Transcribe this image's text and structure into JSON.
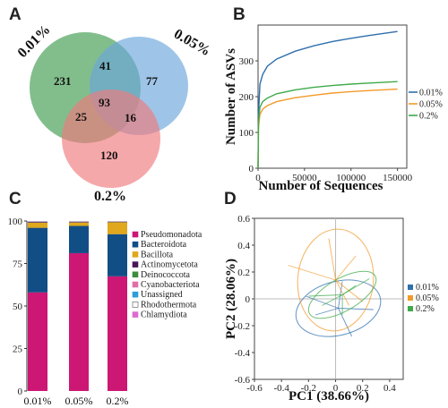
{
  "panels": {
    "A": "A",
    "B": "B",
    "C": "C",
    "D": "D"
  },
  "chart_data": [
    {
      "type": "venn",
      "panel": "A",
      "sets": [
        "0.01%",
        "0.05%",
        "0.2%"
      ],
      "colors": [
        "#3f9b4f",
        "#6aa6db",
        "#ef7a7c"
      ],
      "regions": {
        "only_0.01": 231,
        "only_0.05": 77,
        "only_0.2": 120,
        "0.01_0.05": 41,
        "0.01_0.2": 25,
        "0.05_0.2": 16,
        "all": 93
      }
    },
    {
      "type": "line",
      "panel": "B",
      "xlabel": "Number of Sequences",
      "ylabel": "Number of ASVs",
      "xlim": [
        0,
        160000
      ],
      "ylim": [
        0,
        400
      ],
      "xticks": [
        0,
        50000,
        100000,
        150000
      ],
      "yticks": [
        0,
        100,
        200,
        300
      ],
      "legend_position": "right",
      "series": [
        {
          "name": "0.01%",
          "color": "#2f6fad",
          "x": [
            0,
            500,
            2000,
            5000,
            10000,
            20000,
            40000,
            60000,
            80000,
            100000,
            120000,
            150000
          ],
          "y": [
            0,
            150,
            235,
            262,
            285,
            305,
            327,
            342,
            354,
            363,
            371,
            382
          ]
        },
        {
          "name": "0.05%",
          "color": "#f39a2a",
          "x": [
            0,
            500,
            2000,
            5000,
            10000,
            20000,
            40000,
            60000,
            80000,
            100000,
            120000,
            150000
          ],
          "y": [
            0,
            115,
            150,
            165,
            175,
            186,
            197,
            204,
            210,
            214,
            217,
            221
          ]
        },
        {
          "name": "0.2%",
          "color": "#3faa4a",
          "x": [
            0,
            500,
            2000,
            5000,
            10000,
            20000,
            40000,
            60000,
            80000,
            100000,
            120000,
            150000
          ],
          "y": [
            0,
            130,
            170,
            186,
            196,
            208,
            219,
            226,
            231,
            235,
            238,
            242
          ]
        }
      ]
    },
    {
      "type": "bar",
      "panel": "C",
      "stacked": true,
      "categories": [
        "0.01%",
        "0.05%",
        "0.2%"
      ],
      "ylim": [
        0,
        100
      ],
      "yticks": [
        0,
        25,
        50,
        75,
        100
      ],
      "legend_position": "right",
      "series": [
        {
          "name": "Pseudomonadota",
          "color": "#cc1774",
          "values": [
            58,
            81,
            68
          ]
        },
        {
          "name": "Bacteroidota",
          "color": "#114e86",
          "values": [
            38,
            16,
            25
          ]
        },
        {
          "name": "Bacillota",
          "color": "#e0a81c",
          "values": [
            3,
            2,
            7
          ]
        },
        {
          "name": "Actinomycetota",
          "color": "#4a1557",
          "values": [
            0.4,
            0.3,
            0.2
          ]
        },
        {
          "name": "Deinococcota",
          "color": "#3e8a3e",
          "values": [
            0.2,
            0.2,
            0.2
          ]
        },
        {
          "name": "Cyanobacteriota",
          "color": "#e36fa7",
          "values": [
            0.1,
            0.1,
            0.1
          ]
        },
        {
          "name": "Unassigned",
          "color": "#2f9ed8",
          "values": [
            0.1,
            0.1,
            0.1
          ]
        },
        {
          "name": "Rhodothermota",
          "color": "#ffffff",
          "values": [
            0.1,
            0.1,
            0.1
          ]
        },
        {
          "name": "Chlamydiota",
          "color": "#de6ad0",
          "values": [
            0.1,
            0.1,
            0.1
          ]
        }
      ]
    },
    {
      "type": "scatter",
      "panel": "D",
      "xlabel": "PC1 (38.66%)",
      "ylabel": "PC2 (28.06%)",
      "xlim": [
        -0.6,
        0.5
      ],
      "ylim": [
        -0.6,
        0.6
      ],
      "xticks": [
        -0.6,
        -0.4,
        -0.2,
        0,
        0.2,
        0.4
      ],
      "yticks": [
        -0.6,
        -0.4,
        -0.2,
        0,
        0.2,
        0.4,
        0.6
      ],
      "legend_position": "right",
      "series": [
        {
          "name": "0.01%",
          "color": "#2f6fad",
          "center": [
            0.02,
            -0.07
          ],
          "ellipse": {
            "rx": 0.32,
            "ry": 0.2,
            "angle": -15
          },
          "spokes": [
            [
              -0.22,
              0.02
            ],
            [
              0.28,
              -0.08
            ],
            [
              0.12,
              -0.28
            ],
            [
              -0.15,
              -0.12
            ],
            [
              0.05,
              0.13
            ]
          ]
        },
        {
          "name": "0.05%",
          "color": "#f39a2a",
          "center": [
            0.0,
            0.14
          ],
          "ellipse": {
            "rx": 0.28,
            "ry": 0.38,
            "angle": 5
          },
          "spokes": [
            [
              -0.35,
              0.25
            ],
            [
              0.15,
              0.32
            ],
            [
              0.1,
              -0.05
            ],
            [
              -0.05,
              0.45
            ],
            [
              0.2,
              -0.02
            ]
          ]
        },
        {
          "name": "0.2%",
          "color": "#3faa4a",
          "center": [
            0.05,
            0.03
          ],
          "ellipse": {
            "rx": 0.28,
            "ry": 0.12,
            "angle": -30
          },
          "spokes": [
            [
              -0.2,
              0.02
            ],
            [
              0.25,
              0.15
            ],
            [
              0.05,
              -0.12
            ],
            [
              0.15,
              0.1
            ],
            [
              -0.1,
              -0.05
            ]
          ]
        }
      ]
    }
  ]
}
